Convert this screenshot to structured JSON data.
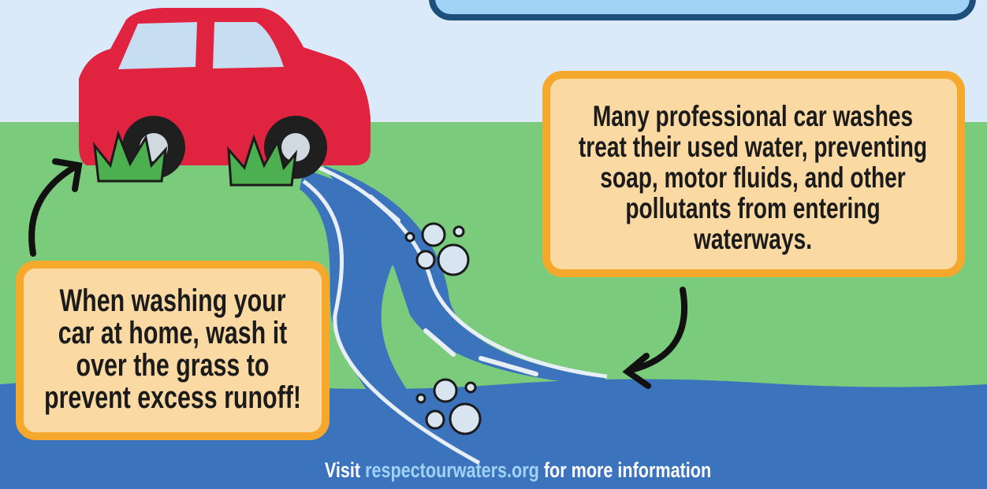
{
  "left_tip": {
    "lines": [
      "When washing your",
      "car at home, wash it",
      "over the grass to",
      "prevent excess runoff!"
    ]
  },
  "right_tip": {
    "lines": [
      "Many professional car washes",
      "treat their used water, preventing",
      "soap, motor fluids, and other",
      "pollutants from entering",
      "waterways."
    ]
  },
  "footer": {
    "prefix": "Visit",
    "link": "respectourwaters.org",
    "suffix": "for more information"
  }
}
